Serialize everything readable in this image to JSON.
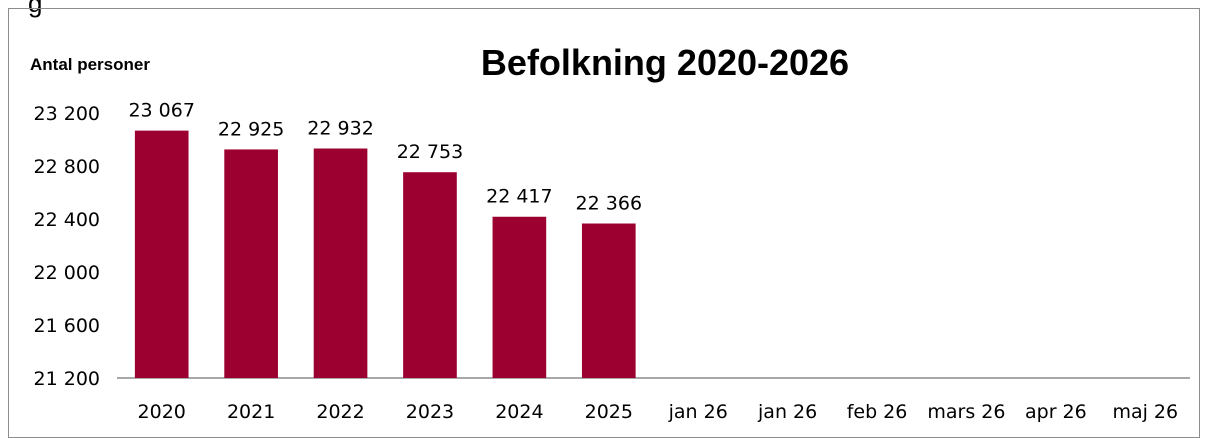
{
  "chart_data": {
    "type": "bar",
    "title": "Befolkning 2020-2026",
    "ylabel": "Antal personer",
    "xlabel": "",
    "categories": [
      "2020",
      "2021",
      "2022",
      "2023",
      "2024",
      "2025",
      "jan 26",
      "jan 26",
      "feb 26",
      "mars 26",
      "apr 26",
      "maj 26"
    ],
    "values": [
      23067,
      22925,
      22932,
      22753,
      22417,
      22366,
      null,
      null,
      null,
      null,
      null,
      null
    ],
    "data_labels": [
      "23 067",
      "22 925",
      "22 932",
      "22 753",
      "22 417",
      "22 366",
      "",
      "",
      "",
      "",
      "",
      ""
    ],
    "ylim": [
      21200,
      23200
    ],
    "y_ticks": [
      21200,
      21600,
      22000,
      22400,
      22800,
      23200
    ],
    "y_tick_labels": [
      "21 200",
      "21 600",
      "22 000",
      "22 400",
      "22 800",
      "23 200"
    ],
    "grid": false,
    "legend": "none",
    "bar_color": "#9b0030"
  },
  "header_cut": "g"
}
